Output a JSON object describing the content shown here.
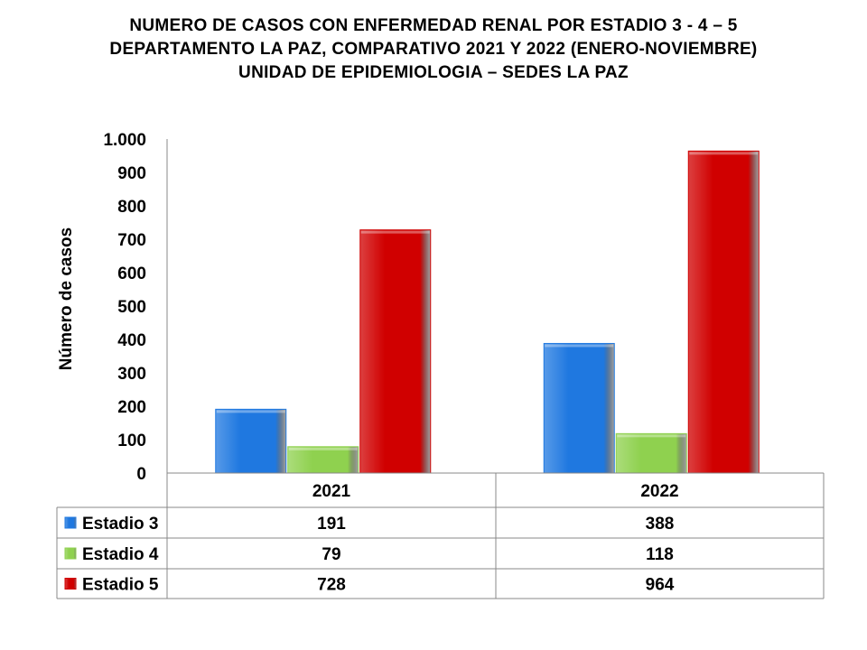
{
  "chart_data": {
    "type": "bar",
    "title_lines": [
      "NUMERO DE CASOS CON ENFERMEDAD  RENAL POR ESTADIO 3 - 4 – 5",
      "DEPARTAMENTO  LA PAZ, COMPARATIVO  2021 Y 2022 (ENERO-NOVIEMBRE)",
      "UNIDAD DE EPIDEMIOLOGIA – SEDES LA PAZ"
    ],
    "ylabel": "Número de casos",
    "xlabel": "",
    "ylim": [
      0,
      1000
    ],
    "yticks": [
      0,
      100,
      200,
      300,
      400,
      500,
      600,
      700,
      800,
      900,
      1000
    ],
    "ytick_labels": [
      "0",
      "100",
      "200",
      "300",
      "400",
      "500",
      "600",
      "700",
      "800",
      "900",
      "1.000"
    ],
    "grid": false,
    "legend": "data-table",
    "categories": [
      "2021",
      "2022"
    ],
    "series": [
      {
        "name": "Estadio 3",
        "values": [
          191,
          388
        ],
        "color": "#1F78E0"
      },
      {
        "name": "Estadio 4",
        "values": [
          79,
          118
        ],
        "color": "#8FD14F"
      },
      {
        "name": "Estadio 5",
        "values": [
          728,
          964
        ],
        "color": "#D00000"
      }
    ]
  }
}
